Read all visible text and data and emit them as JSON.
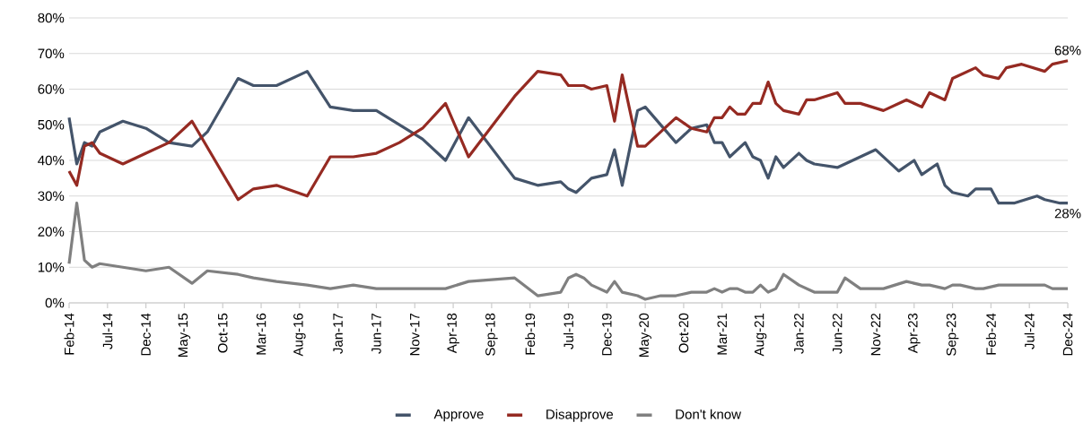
{
  "chart_data": {
    "type": "line",
    "xlim": [
      "2014-02",
      "2024-12"
    ],
    "xticks": [
      {
        "value": "2014-02",
        "label": "Feb-14"
      },
      {
        "value": "2014-07",
        "label": "Jul-14"
      },
      {
        "value": "2014-12",
        "label": "Dec-14"
      },
      {
        "value": "2015-05",
        "label": "May-15"
      },
      {
        "value": "2015-10",
        "label": "Oct-15"
      },
      {
        "value": "2016-03",
        "label": "Mar-16"
      },
      {
        "value": "2016-08",
        "label": "Aug-16"
      },
      {
        "value": "2017-01",
        "label": "Jan-17"
      },
      {
        "value": "2017-06",
        "label": "Jun-17"
      },
      {
        "value": "2017-11",
        "label": "Nov-17"
      },
      {
        "value": "2018-04",
        "label": "Apr-18"
      },
      {
        "value": "2018-09",
        "label": "Sep-18"
      },
      {
        "value": "2019-02",
        "label": "Feb-19"
      },
      {
        "value": "2019-07",
        "label": "Jul-19"
      },
      {
        "value": "2019-12",
        "label": "Dec-19"
      },
      {
        "value": "2020-05",
        "label": "May-20"
      },
      {
        "value": "2020-10",
        "label": "Oct-20"
      },
      {
        "value": "2021-03",
        "label": "Mar-21"
      },
      {
        "value": "2021-08",
        "label": "Aug-21"
      },
      {
        "value": "2022-01",
        "label": "Jan-22"
      },
      {
        "value": "2022-06",
        "label": "Jun-22"
      },
      {
        "value": "2022-11",
        "label": "Nov-22"
      },
      {
        "value": "2023-04",
        "label": "Apr-23"
      },
      {
        "value": "2023-09",
        "label": "Sep-23"
      },
      {
        "value": "2024-02",
        "label": "Feb-24"
      },
      {
        "value": "2024-07",
        "label": "Jul-24"
      },
      {
        "value": "2024-12",
        "label": "Dec-24"
      }
    ],
    "ylim": [
      0,
      80
    ],
    "yticks": [
      {
        "value": 0,
        "label": "0%"
      },
      {
        "value": 10,
        "label": "10%"
      },
      {
        "value": 20,
        "label": "20%"
      },
      {
        "value": 30,
        "label": "30%"
      },
      {
        "value": 40,
        "label": "40%"
      },
      {
        "value": 50,
        "label": "50%"
      },
      {
        "value": 60,
        "label": "60%"
      },
      {
        "value": 70,
        "label": "70%"
      },
      {
        "value": 80,
        "label": "80%"
      }
    ],
    "grid": "y",
    "legend": "bottom",
    "series": [
      {
        "name": "Approve",
        "color": "#44546a",
        "x": [
          "2014-02",
          "2014-03",
          "2014-04",
          "2014-05",
          "2014-06",
          "2014-09",
          "2014-12",
          "2015-03",
          "2015-06",
          "2015-08",
          "2015-12",
          "2016-02",
          "2016-05",
          "2016-09",
          "2016-12",
          "2017-03",
          "2017-06",
          "2017-12",
          "2018-03",
          "2018-06",
          "2018-12",
          "2019-03",
          "2019-06",
          "2019-07",
          "2019-08",
          "2019-10",
          "2019-12",
          "2020-01",
          "2020-02",
          "2020-04",
          "2020-05",
          "2020-09",
          "2020-11",
          "2021-01",
          "2021-02",
          "2021-03",
          "2021-04",
          "2021-06",
          "2021-07",
          "2021-08",
          "2021-09",
          "2021-10",
          "2021-11",
          "2022-01",
          "2022-02",
          "2022-03",
          "2022-06",
          "2022-11",
          "2023-02",
          "2023-04",
          "2023-05",
          "2023-07",
          "2023-08",
          "2023-09",
          "2023-11",
          "2023-12",
          "2024-02",
          "2024-03",
          "2024-05",
          "2024-08",
          "2024-09",
          "2024-11",
          "2024-12"
        ],
        "values": [
          52,
          39,
          45,
          44,
          48,
          51,
          49,
          45,
          44,
          48,
          63,
          61,
          61,
          65,
          55,
          54,
          54,
          46,
          40,
          52,
          35,
          33,
          34,
          32,
          31,
          35,
          36,
          43,
          33,
          54,
          55,
          45,
          49,
          50,
          45,
          45,
          41,
          45,
          41,
          40,
          35,
          41,
          38,
          42,
          40,
          39,
          38,
          43,
          37,
          40,
          36,
          39,
          33,
          31,
          30,
          32,
          32,
          28,
          28,
          30,
          29,
          28,
          28
        ]
      },
      {
        "name": "Disapprove",
        "color": "#952a22",
        "x": [
          "2014-02",
          "2014-03",
          "2014-04",
          "2014-05",
          "2014-06",
          "2014-09",
          "2014-12",
          "2015-03",
          "2015-06",
          "2015-12",
          "2016-02",
          "2016-05",
          "2016-09",
          "2016-12",
          "2017-03",
          "2017-06",
          "2017-09",
          "2017-12",
          "2018-03",
          "2018-06",
          "2018-12",
          "2019-03",
          "2019-06",
          "2019-07",
          "2019-09",
          "2019-10",
          "2019-12",
          "2020-01",
          "2020-02",
          "2020-04",
          "2020-05",
          "2020-09",
          "2020-11",
          "2021-01",
          "2021-02",
          "2021-03",
          "2021-04",
          "2021-05",
          "2021-06",
          "2021-07",
          "2021-08",
          "2021-09",
          "2021-10",
          "2021-11",
          "2022-01",
          "2022-02",
          "2022-03",
          "2022-06",
          "2022-07",
          "2022-09",
          "2022-12",
          "2023-03",
          "2023-05",
          "2023-06",
          "2023-08",
          "2023-09",
          "2023-12",
          "2024-01",
          "2024-03",
          "2024-04",
          "2024-06",
          "2024-09",
          "2024-10",
          "2024-12"
        ],
        "values": [
          37,
          33,
          44,
          45,
          42,
          39,
          42,
          45,
          51,
          29,
          32,
          33,
          30,
          41,
          41,
          42,
          45,
          49,
          56,
          41,
          58,
          65,
          64,
          61,
          61,
          60,
          61,
          51,
          64,
          44,
          44,
          52,
          49,
          48,
          52,
          52,
          55,
          53,
          53,
          56,
          56,
          62,
          56,
          54,
          53,
          57,
          57,
          59,
          56,
          56,
          54,
          57,
          55,
          59,
          57,
          63,
          66,
          64,
          63,
          66,
          67,
          65,
          67,
          68
        ]
      },
      {
        "name": "Don't know",
        "color": "#808080",
        "x": [
          "2014-02",
          "2014-03",
          "2014-04",
          "2014-05",
          "2014-06",
          "2014-09",
          "2014-12",
          "2015-03",
          "2015-06",
          "2015-08",
          "2015-12",
          "2016-02",
          "2016-05",
          "2016-09",
          "2016-12",
          "2017-03",
          "2017-06",
          "2018-03",
          "2018-06",
          "2018-12",
          "2019-03",
          "2019-06",
          "2019-07",
          "2019-08",
          "2019-09",
          "2019-10",
          "2019-12",
          "2020-01",
          "2020-02",
          "2020-04",
          "2020-05",
          "2020-07",
          "2020-09",
          "2020-11",
          "2021-01",
          "2021-02",
          "2021-03",
          "2021-04",
          "2021-05",
          "2021-06",
          "2021-07",
          "2021-08",
          "2021-09",
          "2021-10",
          "2021-11",
          "2022-01",
          "2022-03",
          "2022-06",
          "2022-07",
          "2022-09",
          "2022-12",
          "2023-03",
          "2023-05",
          "2023-06",
          "2023-08",
          "2023-09",
          "2023-10",
          "2023-12",
          "2024-01",
          "2024-03",
          "2024-09",
          "2024-10",
          "2024-12"
        ],
        "values": [
          11,
          28,
          12,
          10,
          11,
          10,
          9,
          10,
          5.5,
          9,
          8,
          7,
          6,
          5,
          4,
          5,
          4,
          4,
          6,
          7,
          2,
          3,
          7,
          8,
          7,
          5,
          3,
          6,
          3,
          2,
          1,
          2,
          2,
          3,
          3,
          4,
          3,
          4,
          4,
          3,
          3,
          5,
          3,
          4,
          8,
          5,
          3,
          3,
          7,
          4,
          4,
          6,
          5,
          5,
          4,
          5,
          5,
          4,
          4,
          5,
          5,
          4,
          4
        ]
      }
    ],
    "annotations": [
      {
        "text": "68%",
        "x": "2024-12",
        "y": 68
      },
      {
        "text": "28%",
        "x": "2024-12",
        "y": 28
      }
    ]
  }
}
